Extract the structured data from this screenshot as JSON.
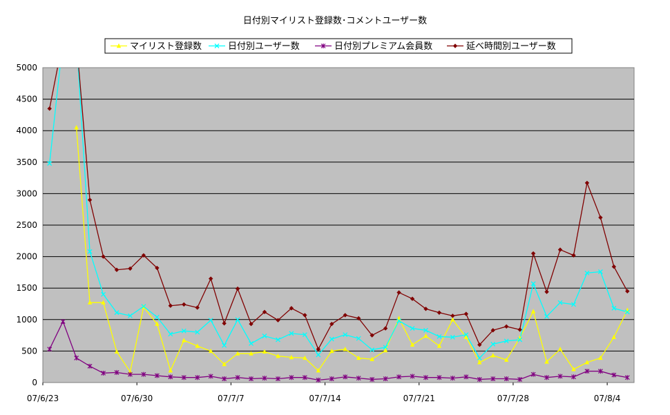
{
  "chart_data": {
    "type": "line",
    "title": "日付別マイリスト登録数･コメントユーザー数",
    "xlabel": "",
    "ylabel": "",
    "ylim": [
      0,
      5000
    ],
    "yticks": [
      "0",
      "500",
      "1000",
      "1500",
      "2000",
      "2500",
      "3000",
      "3500",
      "4000",
      "4500",
      "5000"
    ],
    "x": [
      "07/6/23",
      "07/6/24",
      "07/6/25",
      "07/6/26",
      "07/6/27",
      "07/6/28",
      "07/6/29",
      "07/6/30",
      "07/7/1",
      "07/7/2",
      "07/7/3",
      "07/7/4",
      "07/7/5",
      "07/7/6",
      "07/7/7",
      "07/7/8",
      "07/7/9",
      "07/7/10",
      "07/7/11",
      "07/7/12",
      "07/7/13",
      "07/7/14",
      "07/7/15",
      "07/7/16",
      "07/7/17",
      "07/7/18",
      "07/7/19",
      "07/7/20",
      "07/7/21",
      "07/7/22",
      "07/7/23",
      "07/7/24",
      "07/7/25",
      "07/7/26",
      "07/7/27",
      "07/7/28",
      "07/7/29",
      "07/7/30",
      "07/7/31",
      "07/8/1",
      "07/8/2",
      "07/8/3",
      "07/8/4",
      "07/8/5"
    ],
    "xtick_labels": [
      "07/6/23",
      "07/6/30",
      "07/7/7",
      "07/7/14",
      "07/7/21",
      "07/7/28",
      "07/8/4"
    ],
    "grid": true,
    "legend_position": "top",
    "plot_background": "#c0c0c0",
    "series": [
      {
        "name": "マイリスト登録数",
        "color": "#ffff00",
        "marker": "triangle",
        "values": [
          null,
          null,
          4050,
          1270,
          1270,
          490,
          170,
          1200,
          930,
          190,
          670,
          580,
          500,
          290,
          460,
          460,
          490,
          420,
          400,
          390,
          190,
          500,
          530,
          390,
          370,
          510,
          1020,
          600,
          740,
          580,
          1000,
          720,
          320,
          430,
          360,
          710,
          1130,
          330,
          530,
          210,
          320,
          390,
          720,
          1150
        ]
      },
      {
        "name": "日付別ユーザー数",
        "color": "#00ffff",
        "marker": "x",
        "values": [
          3480,
          5000,
          5000,
          2080,
          1400,
          1110,
          1060,
          1210,
          1040,
          770,
          820,
          800,
          990,
          590,
          1000,
          620,
          740,
          680,
          780,
          760,
          440,
          690,
          760,
          700,
          520,
          560,
          980,
          860,
          830,
          730,
          720,
          760,
          390,
          610,
          660,
          680,
          1570,
          1050,
          1270,
          1240,
          1740,
          1760,
          1180,
          1120
        ]
      },
      {
        "name": "日付別プレミアム会員数",
        "color": "#800080",
        "marker": "star",
        "values": [
          530,
          970,
          390,
          260,
          150,
          160,
          130,
          130,
          110,
          90,
          80,
          80,
          100,
          60,
          80,
          60,
          70,
          60,
          80,
          80,
          40,
          60,
          90,
          70,
          50,
          60,
          90,
          100,
          80,
          80,
          70,
          90,
          50,
          60,
          60,
          50,
          130,
          80,
          100,
          90,
          180,
          180,
          120,
          80
        ]
      },
      {
        "name": "延べ時間別ユーザー数",
        "color": "#800000",
        "marker": "diamond",
        "values": [
          4350,
          5000,
          5000,
          2900,
          2000,
          1790,
          1810,
          2020,
          1820,
          1220,
          1240,
          1190,
          1650,
          940,
          1490,
          930,
          1120,
          990,
          1180,
          1070,
          530,
          930,
          1070,
          1020,
          750,
          860,
          1430,
          1330,
          1170,
          1110,
          1060,
          1090,
          600,
          830,
          890,
          840,
          2050,
          1440,
          2110,
          2020,
          3170,
          2620,
          1840,
          1450
        ]
      }
    ]
  }
}
